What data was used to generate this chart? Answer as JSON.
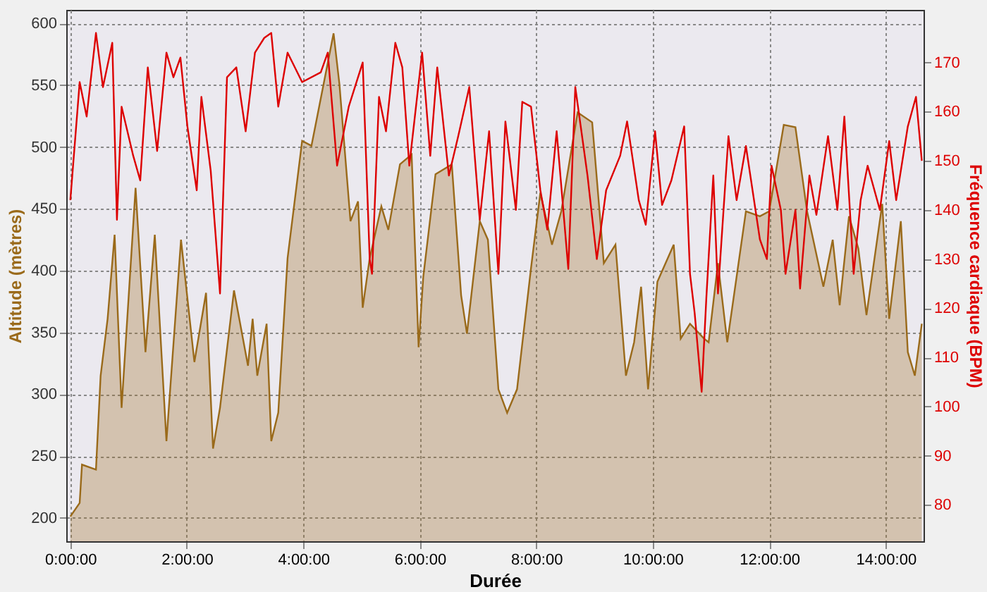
{
  "chart_data": {
    "type": "area",
    "xlabel": "Durée",
    "ylabel": "Altitude (mètres)",
    "y2label": "Fréquence cardiaque (BPM)",
    "xlim": [
      -0.07,
      14.65
    ],
    "ylim": [
      181,
      611
    ],
    "y2lim": [
      72.6,
      180.7
    ],
    "xticks": [
      {
        "value": 0,
        "label": "0:00:00"
      },
      {
        "value": 2,
        "label": "2:00:00"
      },
      {
        "value": 4,
        "label": "4:00:00"
      },
      {
        "value": 6,
        "label": "6:00:00"
      },
      {
        "value": 8,
        "label": "8:00:00"
      },
      {
        "value": 10,
        "label": "10:00:00"
      },
      {
        "value": 12,
        "label": "12:00:00"
      },
      {
        "value": 14,
        "label": "14:00:00"
      }
    ],
    "yticks": [
      200,
      250,
      300,
      350,
      400,
      450,
      500,
      550,
      600
    ],
    "y2ticks": [
      80,
      90,
      100,
      110,
      120,
      130,
      140,
      150,
      160,
      170
    ],
    "grid": true,
    "series": [
      {
        "color": "#9a6a1a",
        "x": [
          0,
          0.16,
          0.2,
          0.44,
          0.52,
          0.64,
          0.76,
          0.88,
          1.12,
          1.29,
          1.45,
          1.65,
          1.9,
          2.13,
          2.33,
          2.45,
          2.57,
          2.81,
          3.05,
          3.13,
          3.21,
          3.37,
          3.45,
          3.57,
          3.73,
          3.98,
          4.14,
          4.52,
          4.62,
          4.81,
          4.94,
          5.02,
          5.14,
          5.34,
          5.46,
          5.66,
          5.86,
          5.98,
          6.06,
          6.27,
          6.55,
          6.71,
          6.81,
          7.03,
          7.17,
          7.35,
          7.5,
          7.67,
          7.91,
          8.07,
          8.27,
          8.43,
          8.71,
          8.96,
          9.16,
          9.36,
          9.54,
          9.68,
          9.8,
          9.92,
          10.08,
          10.36,
          10.48,
          10.64,
          10.88,
          10.96,
          11.12,
          11.28,
          11.6,
          11.84,
          12.0,
          12.25,
          12.45,
          12.65,
          12.93,
          13.09,
          13.21,
          13.37,
          13.53,
          13.67,
          13.94,
          14.06,
          14.26,
          14.38,
          14.5,
          14.62
        ],
        "values": [
          201,
          212,
          243,
          239,
          315,
          361,
          429,
          289,
          467,
          334,
          429,
          262,
          425,
          326,
          382,
          256,
          289,
          384,
          323,
          361,
          315,
          357,
          262,
          285,
          410,
          505,
          501,
          592,
          551,
          440,
          456,
          370,
          410,
          452,
          433,
          486,
          494,
          338,
          395,
          478,
          486,
          380,
          349,
          440,
          425,
          304,
          285,
          304,
          402,
          463,
          421,
          448,
          528,
          520,
          406,
          421,
          315,
          342,
          387,
          304,
          391,
          421,
          345,
          357,
          345,
          342,
          406,
          342,
          448,
          444,
          448,
          518,
          516,
          448,
          387,
          425,
          372,
          444,
          418,
          364,
          454,
          361,
          440,
          334,
          315,
          357
        ]
      },
      {
        "type": "line",
        "axis": "y2",
        "color": "#dd0000",
        "x": [
          0,
          0.08,
          0.16,
          0.28,
          0.44,
          0.56,
          0.72,
          0.8,
          0.88,
          1.08,
          1.2,
          1.33,
          1.49,
          1.65,
          1.77,
          1.89,
          2.01,
          2.17,
          2.25,
          2.41,
          2.57,
          2.69,
          2.85,
          3.01,
          3.17,
          3.33,
          3.45,
          3.57,
          3.73,
          3.98,
          4.3,
          4.42,
          4.58,
          4.78,
          5.02,
          5.14,
          5.18,
          5.3,
          5.42,
          5.58,
          5.7,
          5.82,
          6.04,
          6.18,
          6.3,
          6.5,
          6.66,
          6.85,
          7.03,
          7.19,
          7.35,
          7.47,
          7.65,
          7.76,
          7.91,
          8.07,
          8.19,
          8.35,
          8.55,
          8.67,
          8.88,
          9.04,
          9.2,
          9.44,
          9.56,
          9.76,
          9.88,
          10.04,
          10.16,
          10.32,
          10.54,
          10.64,
          10.72,
          10.84,
          10.92,
          11.04,
          11.12,
          11.3,
          11.44,
          11.6,
          11.84,
          11.96,
          12.04,
          12.2,
          12.28,
          12.45,
          12.53,
          12.69,
          12.81,
          13.01,
          13.17,
          13.29,
          13.45,
          13.57,
          13.69,
          13.9,
          14.06,
          14.18,
          14.38,
          14.52,
          14.62
        ],
        "values": [
          142,
          154,
          166,
          159,
          176,
          165,
          174,
          138,
          161,
          151,
          146,
          169,
          152,
          172,
          167,
          171,
          157,
          144,
          163,
          148,
          123,
          167,
          169,
          156,
          172,
          175,
          176,
          161,
          172,
          166,
          168,
          172,
          149,
          161,
          170,
          130,
          127,
          163,
          156,
          174,
          169,
          149,
          172,
          151,
          169,
          147,
          155,
          165,
          138,
          156,
          127,
          158,
          140,
          162,
          161,
          144,
          136,
          156,
          128,
          165,
          147,
          130,
          144,
          151,
          158,
          142,
          137,
          156,
          141,
          146,
          157,
          127,
          119,
          103,
          122,
          147,
          123,
          155,
          142,
          153,
          134,
          130,
          149,
          140,
          127,
          140,
          124,
          147,
          139,
          155,
          140,
          159,
          127,
          142,
          149,
          140,
          154,
          142,
          157,
          163,
          150
        ]
      }
    ]
  }
}
